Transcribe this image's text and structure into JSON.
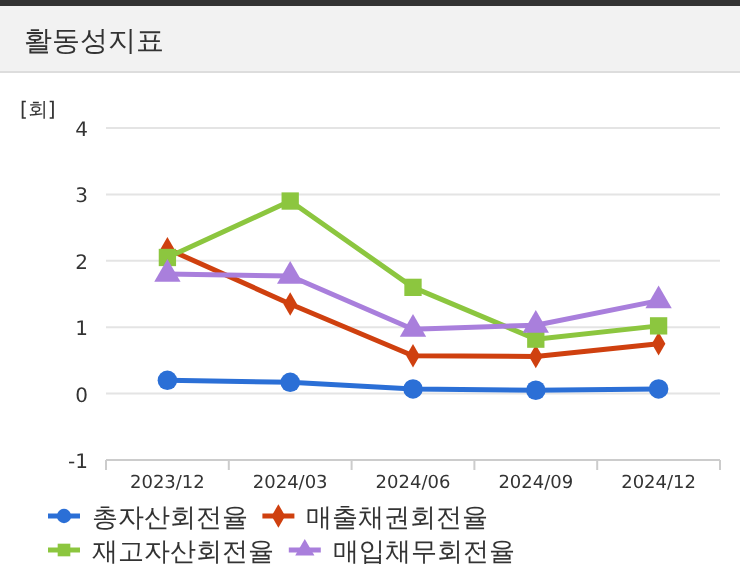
{
  "chart_data": {
    "type": "line",
    "title": "활동성지표",
    "ylabel": "[회]",
    "categories": [
      "2023/12",
      "2024/03",
      "2024/06",
      "2024/09",
      "2024/12"
    ],
    "series": [
      {
        "name": "총자산회전율",
        "color": "#2b6fd6",
        "marker": "circle",
        "values": [
          0.2,
          0.17,
          0.07,
          0.05,
          0.07
        ]
      },
      {
        "name": "매출채권회전율",
        "color": "#cf400f",
        "marker": "diamond",
        "values": [
          2.18,
          1.35,
          0.57,
          0.56,
          0.75
        ]
      },
      {
        "name": "재고자산회전율",
        "color": "#8cc63f",
        "marker": "square",
        "values": [
          2.05,
          2.9,
          1.6,
          0.82,
          1.02
        ]
      },
      {
        "name": "매입채무회전율",
        "color": "#a97fdc",
        "marker": "triangle",
        "values": [
          1.8,
          1.77,
          0.97,
          1.03,
          1.4
        ]
      }
    ],
    "ylim": [
      -1,
      4
    ],
    "yticks": [
      -1,
      0,
      1,
      2,
      3,
      4
    ],
    "grid": "y",
    "legend": "bottom"
  }
}
